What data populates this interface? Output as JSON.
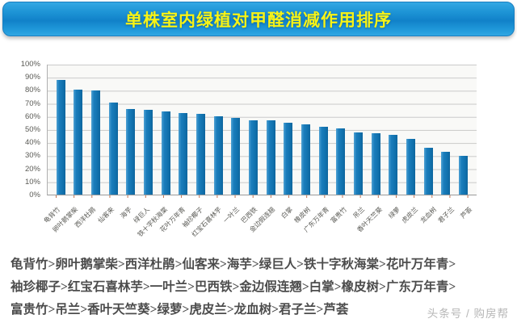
{
  "banner": {
    "title": "单株室内绿植对甲醛消减作用排序",
    "background_color": "#1181c9",
    "title_color": "#f7f316"
  },
  "chart_data": {
    "type": "bar",
    "title": "单株室内绿植对甲醛消减作用排序",
    "categories": [
      "龟背竹",
      "卵叶鹅掌柴",
      "西洋杜鹃",
      "仙客来",
      "海芋",
      "绿巨人",
      "铁十字秋海棠",
      "花叶万年青",
      "袖珍椰子",
      "红宝石喜林芋",
      "一叶兰",
      "巴西铁",
      "金边假连翘",
      "白掌",
      "橡皮树",
      "广东万年青",
      "富贵竹",
      "吊兰",
      "香叶天竺葵",
      "绿萝",
      "虎皮兰",
      "龙血树",
      "君子兰",
      "芦荟"
    ],
    "values": [
      88,
      81,
      80,
      71,
      66,
      65,
      64,
      63,
      62,
      60,
      59,
      57,
      57,
      55,
      54,
      52,
      51,
      48,
      47,
      46,
      43,
      36,
      33,
      30
    ],
    "unit": "%",
    "y_ticks": [
      "100%",
      "90%",
      "80%",
      "70%",
      "60%",
      "50%",
      "40%",
      "30%",
      "20%",
      "10%",
      "0%"
    ],
    "ylim": [
      0,
      100
    ],
    "grid": true,
    "legend": "none",
    "bar_color": "#1577b7",
    "xlabel": "",
    "ylabel": ""
  },
  "ranking": {
    "lines": [
      "龟背竹>卵叶鹅掌柴>西洋杜鹃>仙客来>海芋>绿巨人>铁十字秋海棠>花叶万年青>",
      "袖珍椰子>红宝石喜林芋>一叶兰>巴西铁>金边假连翘>白掌>橡皮树>广东万年青>",
      "富贵竹>吊兰>香叶天竺葵>绿萝>虎皮兰>龙血树>君子兰>芦荟"
    ]
  },
  "watermark": {
    "text": "头条号 / 购房帮"
  }
}
